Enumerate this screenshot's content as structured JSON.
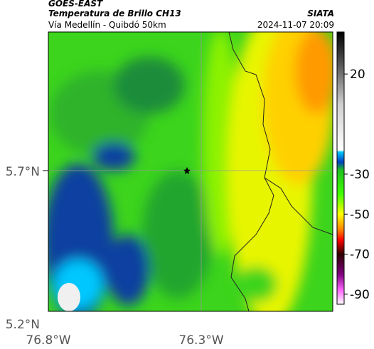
{
  "header": {
    "title": "GOES-EAST",
    "subtitle": "Temperatura de Brillo CH13",
    "region": "Vía Medellín - Quibdó 50km",
    "source": "SIATA",
    "datetime": "2024-11-07 20:09"
  },
  "axes": {
    "lat_labels": [
      "5.7°N",
      "5.2°N"
    ],
    "lon_labels": [
      "76.8°W",
      "76.3°W"
    ]
  },
  "colorbar": {
    "range": [
      41,
      -95
    ],
    "ticks": [
      20,
      -30,
      -50,
      -70,
      -90
    ],
    "colormap": [
      {
        "value": 41,
        "color": "#000000"
      },
      {
        "value": 25,
        "color": "#555555"
      },
      {
        "value": 5,
        "color": "#cfcfcf"
      },
      {
        "value": -18,
        "color": "#ffffff"
      },
      {
        "value": -19,
        "color": "#00c8ff"
      },
      {
        "value": -24,
        "color": "#0040c0"
      },
      {
        "value": -28,
        "color": "#20c020"
      },
      {
        "value": -40,
        "color": "#40ff00"
      },
      {
        "value": -50,
        "color": "#ffff00"
      },
      {
        "value": -58,
        "color": "#ff8000"
      },
      {
        "value": -63,
        "color": "#ff0000"
      },
      {
        "value": -70,
        "color": "#300000"
      },
      {
        "value": -80,
        "color": "#800080"
      },
      {
        "value": -88,
        "color": "#ff66ff"
      },
      {
        "value": -95,
        "color": "#ffffff"
      }
    ]
  }
}
